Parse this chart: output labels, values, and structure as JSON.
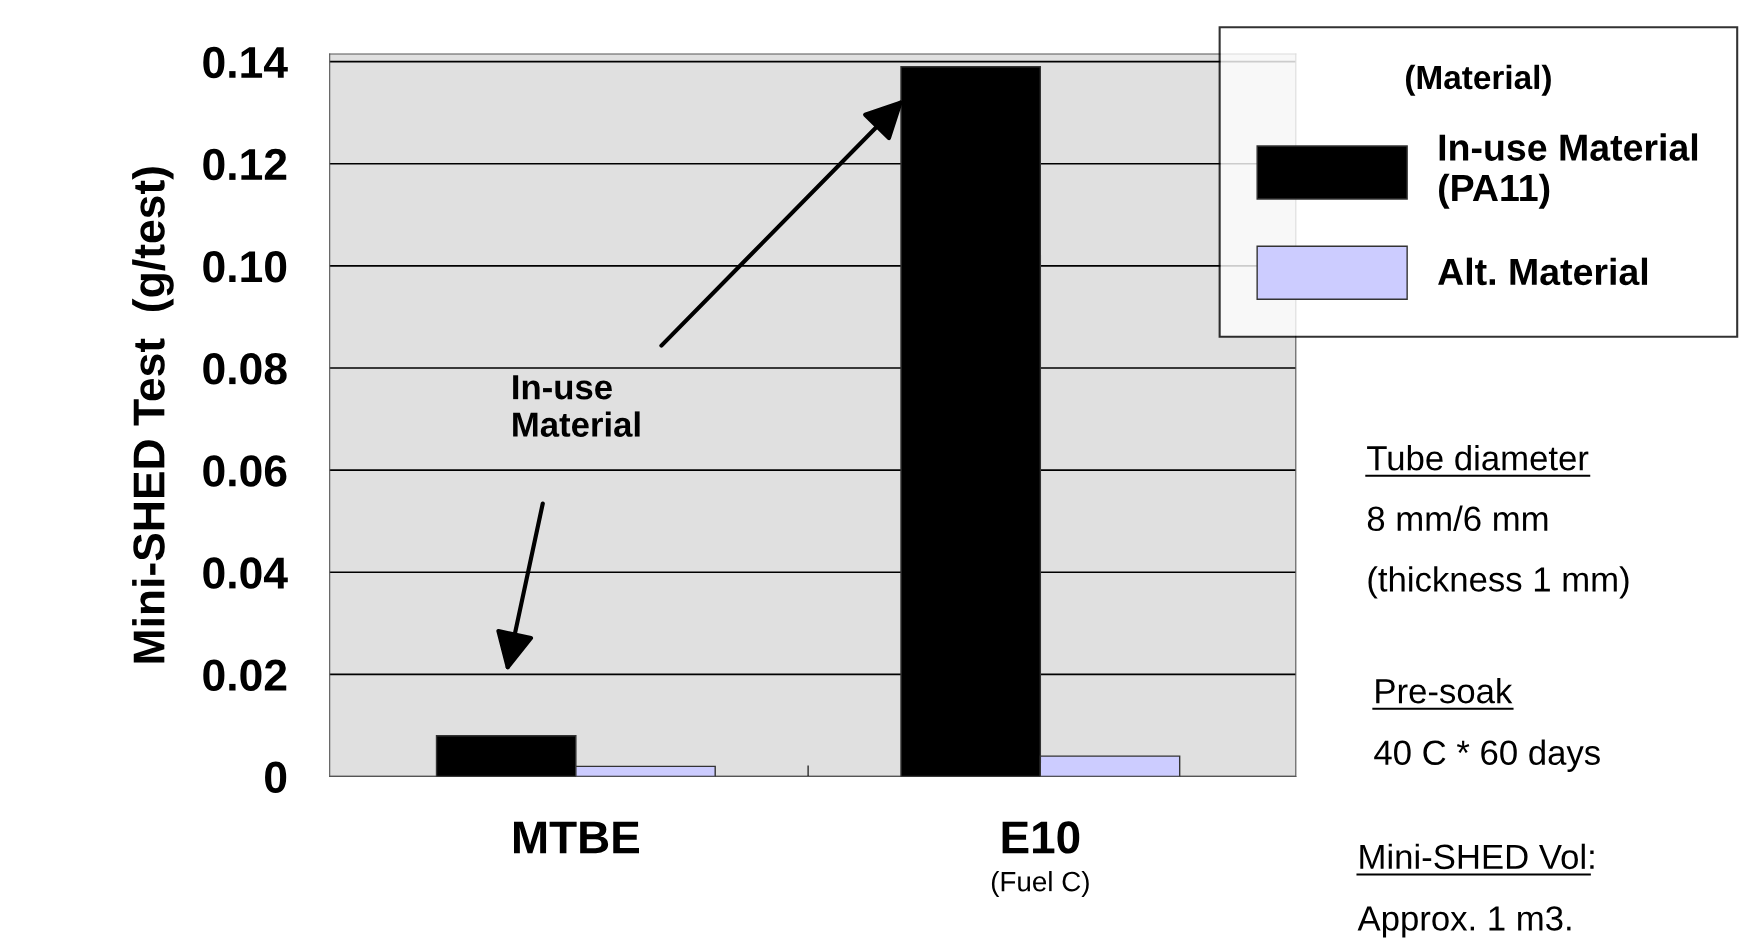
{
  "chart_data": {
    "type": "bar",
    "categories": [
      "MTBE",
      "E10\n(Fuel C)"
    ],
    "series": [
      {
        "name": "In-use Material\n(PA11)",
        "color": "#000000",
        "values": [
          0.008,
          0.139
        ]
      },
      {
        "name": "Alt. Material",
        "color": "#ccccff",
        "values": [
          0.002,
          0.004
        ]
      }
    ],
    "ylabel": "Mini-SHED Test  (g/test)",
    "legend_title": "(Material)",
    "legend": "top right",
    "ylim": [
      0,
      0.1415
    ],
    "yticks": [
      0,
      {
        "value": 0.02,
        "label": "0.02"
      },
      {
        "value": 0.04,
        "label": "0.04"
      },
      {
        "value": 0.06,
        "label": "0.06"
      },
      {
        "value": 0.08,
        "label": "0.08"
      },
      {
        "value": 0.1,
        "label": "0.10"
      },
      {
        "value": 0.12,
        "label": "0.12"
      },
      {
        "value": 0.14,
        "label": "0.14"
      }
    ],
    "grid": "y",
    "annotations": [
      "In-use\nMaterial",
      "Tube diameter",
      "8 mm/6 mm",
      "(thickness 1 mm)",
      "Pre-soak",
      "40 C * 60 days",
      "Mini-SHED Vol:",
      "Approx. 1 m3."
    ]
  }
}
